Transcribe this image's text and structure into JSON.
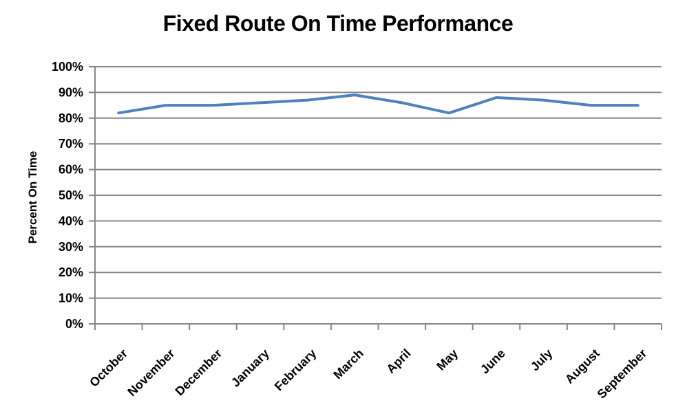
{
  "chart_data": {
    "type": "line",
    "title": "Fixed Route On Time Performance",
    "xlabel": "",
    "ylabel": "Percent On Time",
    "categories": [
      "October",
      "November",
      "December",
      "January",
      "February",
      "March",
      "April",
      "May",
      "June",
      "July",
      "August",
      "September"
    ],
    "series": [
      {
        "name": "Percent On Time",
        "values": [
          82,
          85,
          85,
          86,
          87,
          89,
          86,
          82,
          88,
          87,
          85,
          85
        ]
      }
    ],
    "ylim": [
      0,
      100
    ],
    "ytick_step": 10,
    "ytick_suffix": "%",
    "grid": "horizontal gridlines at every 10%",
    "legend": "none",
    "line_color": "#4F81BD",
    "axis_color": "#868686",
    "text_color": "#000000",
    "background": "#FFFFFF"
  }
}
